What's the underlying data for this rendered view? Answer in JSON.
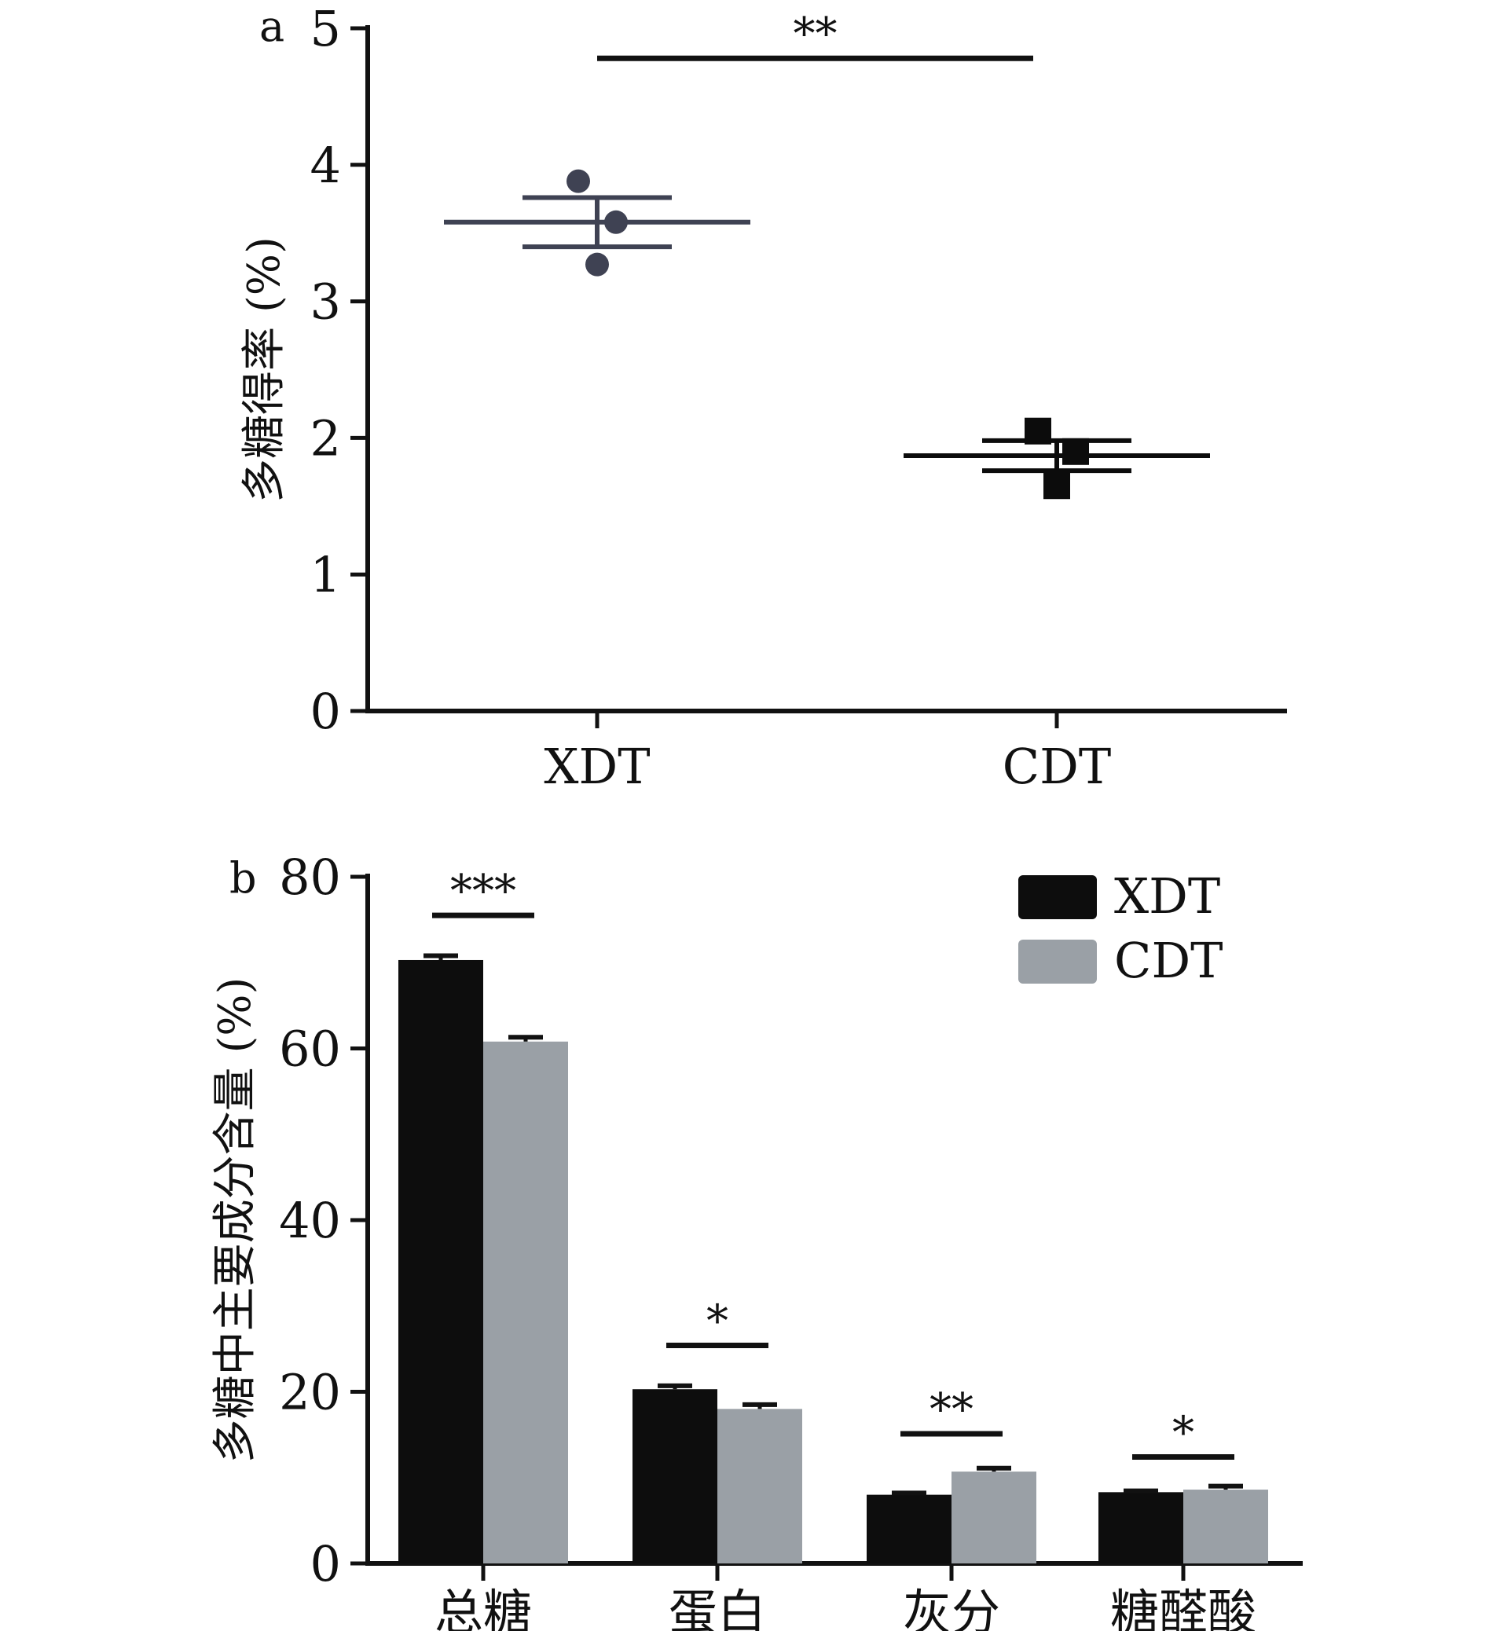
{
  "chart_data": [
    {
      "panel_label": "a",
      "type": "scatter",
      "ylabel": "多糖得率 (%)",
      "xlabel": "",
      "ylim": [
        0,
        5
      ],
      "yticks": [
        "0",
        "1",
        "2",
        "3",
        "4",
        "5"
      ],
      "categories": [
        "XDT",
        "CDT"
      ],
      "series": [
        {
          "category": "XDT",
          "points": [
            3.88,
            3.58,
            3.27
          ],
          "mean": 3.58,
          "error_upper": 3.76,
          "error_lower": 3.4,
          "marker": "circle",
          "color": "#3f4253"
        },
        {
          "category": "CDT",
          "points": [
            2.05,
            1.9,
            1.65
          ],
          "mean": 1.87,
          "error_upper": 1.98,
          "error_lower": 1.76,
          "marker": "square",
          "color": "#0c0c0c"
        }
      ],
      "significance": [
        {
          "from": "XDT",
          "to": "CDT",
          "label": "**",
          "y": 4.78
        }
      ],
      "grid": false
    },
    {
      "panel_label": "b",
      "type": "bar",
      "ylabel": "多糖中主要成分含量 (%)",
      "xlabel": "",
      "ylim": [
        0,
        80
      ],
      "yticks": [
        "0",
        "20",
        "40",
        "60",
        "80"
      ],
      "categories": [
        "总糖",
        "蛋白",
        "灰分",
        "糖醛酸"
      ],
      "series": [
        {
          "name": "XDT",
          "values": [
            70.3,
            20.3,
            8.0,
            8.3
          ],
          "errors": [
            0.5,
            0.4,
            0.2,
            0.15
          ],
          "color": "#0d0d0d"
        },
        {
          "name": "CDT",
          "values": [
            60.8,
            18.0,
            10.7,
            8.6
          ],
          "errors": [
            0.5,
            0.5,
            0.4,
            0.4
          ],
          "color": "#9aa0a6"
        }
      ],
      "significance": [
        {
          "category": "总糖",
          "label": "***",
          "y": 75.5
        },
        {
          "category": "蛋白",
          "label": "*",
          "y": 25.4
        },
        {
          "category": "灰分",
          "label": "**",
          "y": 15.1
        },
        {
          "category": "糖醛酸",
          "label": "*",
          "y": 12.4
        }
      ],
      "legend_position": "top-right",
      "grid": false
    }
  ]
}
